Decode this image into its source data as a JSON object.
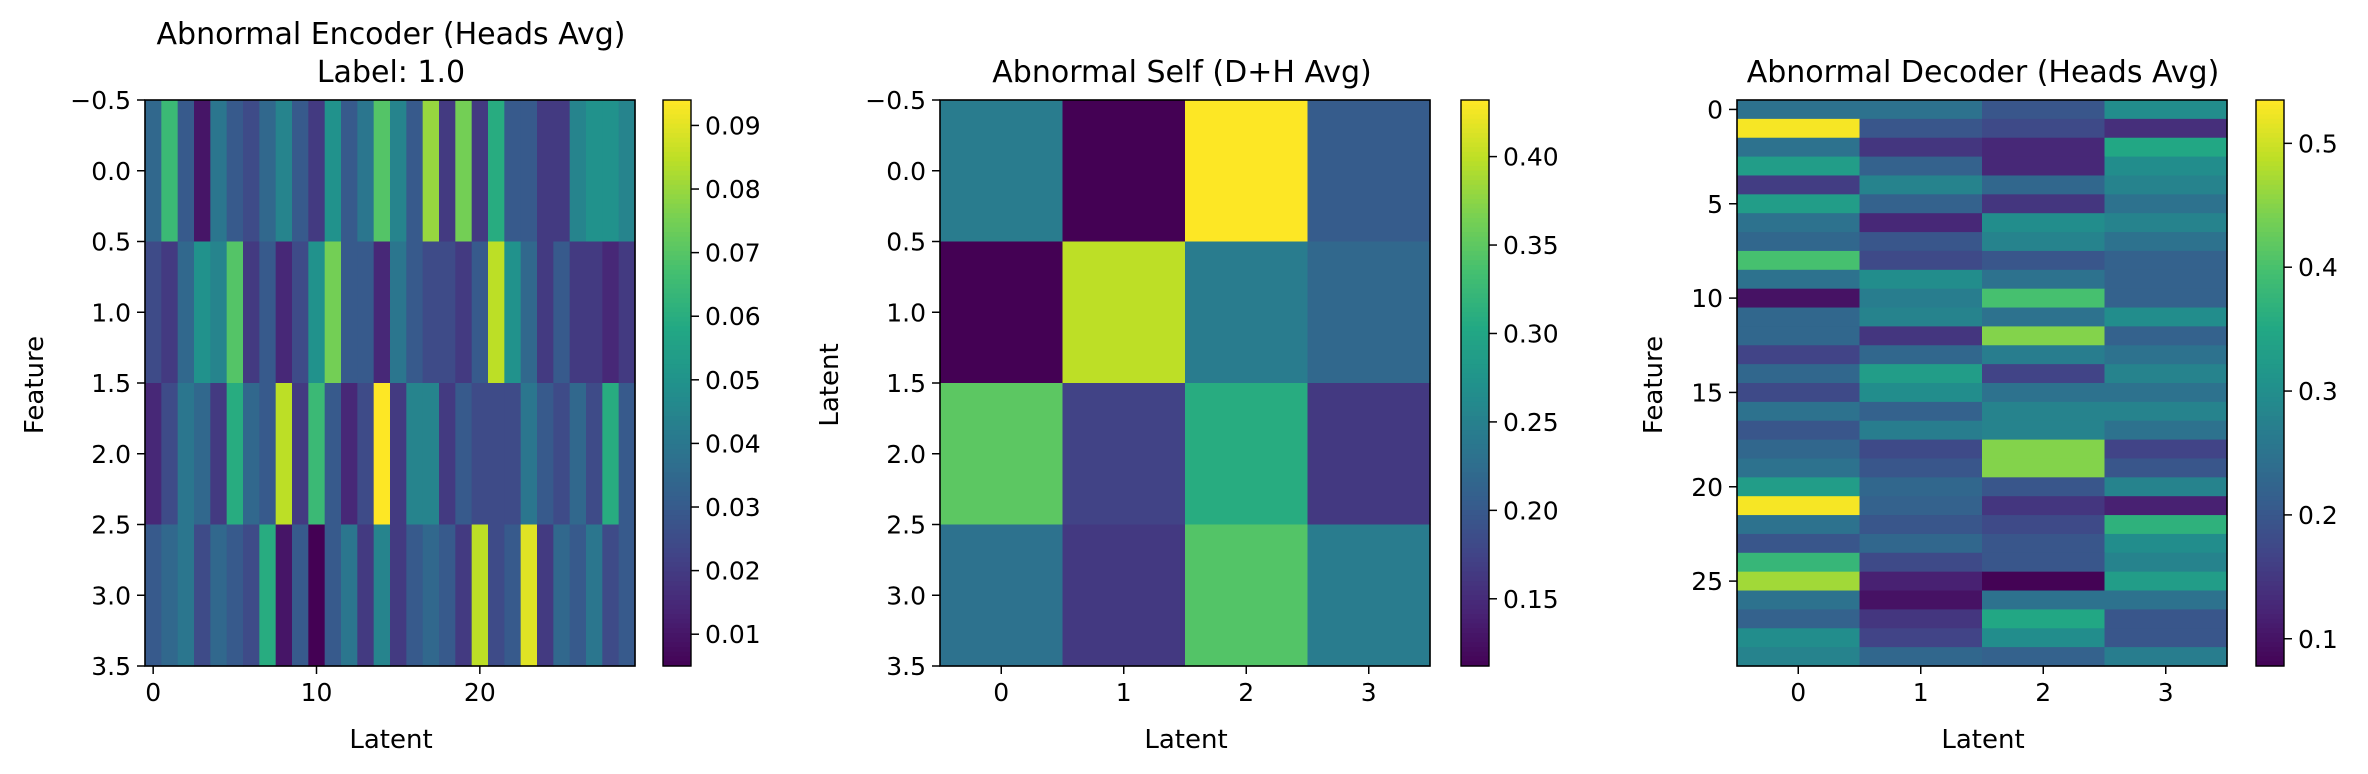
{
  "chart_data": [
    {
      "type": "heatmap",
      "title": "Abnormal Encoder (Heads Avg)",
      "subtitle": "Label: 1.0",
      "xlabel": "Latent",
      "ylabel": "Feature",
      "x_ticks": [
        "0",
        "10",
        "20"
      ],
      "y_ticks": [
        "−0.5",
        "0.0",
        "0.5",
        "1.0",
        "1.5",
        "2.0",
        "2.5",
        "3.0",
        "3.5"
      ],
      "colorbar_ticks": [
        "0.01",
        "0.02",
        "0.03",
        "0.04",
        "0.05",
        "0.06",
        "0.07",
        "0.08",
        "0.09"
      ],
      "vmin": 0.005,
      "vmax": 0.094,
      "colormap": "viridis",
      "values": [
        [
          0.035,
          0.065,
          0.03,
          0.01,
          0.04,
          0.03,
          0.025,
          0.035,
          0.045,
          0.03,
          0.02,
          0.05,
          0.03,
          0.04,
          0.07,
          0.045,
          0.03,
          0.08,
          0.02,
          0.075,
          0.02,
          0.06,
          0.03,
          0.03,
          0.02,
          0.02,
          0.045,
          0.05,
          0.05,
          0.045
        ],
        [
          0.025,
          0.02,
          0.035,
          0.05,
          0.045,
          0.07,
          0.02,
          0.03,
          0.015,
          0.025,
          0.05,
          0.075,
          0.03,
          0.03,
          0.015,
          0.04,
          0.03,
          0.025,
          0.025,
          0.02,
          0.03,
          0.085,
          0.05,
          0.035,
          0.02,
          0.03,
          0.02,
          0.02,
          0.015,
          0.02
        ],
        [
          0.015,
          0.025,
          0.04,
          0.035,
          0.02,
          0.06,
          0.035,
          0.03,
          0.085,
          0.02,
          0.065,
          0.03,
          0.015,
          0.025,
          0.094,
          0.02,
          0.045,
          0.045,
          0.02,
          0.03,
          0.025,
          0.025,
          0.025,
          0.04,
          0.03,
          0.025,
          0.035,
          0.025,
          0.06,
          0.03
        ],
        [
          0.03,
          0.035,
          0.04,
          0.025,
          0.035,
          0.03,
          0.025,
          0.06,
          0.01,
          0.03,
          0.005,
          0.03,
          0.04,
          0.02,
          0.045,
          0.02,
          0.03,
          0.035,
          0.03,
          0.02,
          0.085,
          0.025,
          0.03,
          0.09,
          0.02,
          0.035,
          0.03,
          0.04,
          0.025,
          0.03
        ]
      ]
    },
    {
      "type": "heatmap",
      "title": "Abnormal Self (D+H Avg)",
      "xlabel": "Latent",
      "ylabel": "Latent",
      "x_ticks": [
        "0",
        "1",
        "2",
        "3"
      ],
      "y_ticks": [
        "−0.5",
        "0.0",
        "0.5",
        "1.0",
        "1.5",
        "2.0",
        "2.5",
        "3.0",
        "3.5"
      ],
      "colorbar_ticks": [
        "0.15",
        "0.20",
        "0.25",
        "0.30",
        "0.35",
        "0.40"
      ],
      "vmin": 0.112,
      "vmax": 0.432,
      "colormap": "viridis",
      "values": [
        [
          0.245,
          0.112,
          0.432,
          0.205
        ],
        [
          0.112,
          0.4,
          0.245,
          0.22
        ],
        [
          0.35,
          0.175,
          0.31,
          0.165
        ],
        [
          0.232,
          0.165,
          0.345,
          0.245
        ]
      ]
    },
    {
      "type": "heatmap",
      "title": "Abnormal Decoder (Heads Avg)",
      "xlabel": "Latent",
      "ylabel": "Feature",
      "x_ticks": [
        "0",
        "1",
        "2",
        "3"
      ],
      "y_ticks": [
        "0",
        "5",
        "10",
        "15",
        "20",
        "25"
      ],
      "colorbar_ticks": [
        "0.1",
        "0.2",
        "0.3",
        "0.4",
        "0.5"
      ],
      "vmin": 0.078,
      "vmax": 0.535,
      "colormap": "viridis",
      "values": [
        [
          0.25,
          0.25,
          0.2,
          0.3
        ],
        [
          0.53,
          0.2,
          0.18,
          0.14
        ],
        [
          0.25,
          0.15,
          0.13,
          0.35
        ],
        [
          0.33,
          0.22,
          0.13,
          0.3
        ],
        [
          0.16,
          0.28,
          0.23,
          0.28
        ],
        [
          0.33,
          0.22,
          0.15,
          0.25
        ],
        [
          0.25,
          0.13,
          0.3,
          0.28
        ],
        [
          0.23,
          0.2,
          0.28,
          0.25
        ],
        [
          0.4,
          0.18,
          0.2,
          0.22
        ],
        [
          0.25,
          0.3,
          0.25,
          0.22
        ],
        [
          0.1,
          0.27,
          0.4,
          0.22
        ],
        [
          0.23,
          0.28,
          0.25,
          0.3
        ],
        [
          0.23,
          0.15,
          0.45,
          0.22
        ],
        [
          0.17,
          0.23,
          0.27,
          0.25
        ],
        [
          0.23,
          0.33,
          0.17,
          0.28
        ],
        [
          0.18,
          0.3,
          0.25,
          0.25
        ],
        [
          0.25,
          0.22,
          0.28,
          0.28
        ],
        [
          0.2,
          0.27,
          0.28,
          0.25
        ],
        [
          0.23,
          0.18,
          0.45,
          0.17
        ],
        [
          0.25,
          0.2,
          0.45,
          0.2
        ],
        [
          0.33,
          0.23,
          0.2,
          0.28
        ],
        [
          0.53,
          0.22,
          0.15,
          0.12
        ],
        [
          0.25,
          0.2,
          0.18,
          0.37
        ],
        [
          0.2,
          0.23,
          0.2,
          0.3
        ],
        [
          0.38,
          0.18,
          0.2,
          0.28
        ],
        [
          0.47,
          0.12,
          0.08,
          0.33
        ],
        [
          0.25,
          0.1,
          0.25,
          0.25
        ],
        [
          0.22,
          0.15,
          0.35,
          0.2
        ],
        [
          0.3,
          0.17,
          0.3,
          0.2
        ],
        [
          0.28,
          0.23,
          0.22,
          0.27
        ]
      ]
    }
  ]
}
